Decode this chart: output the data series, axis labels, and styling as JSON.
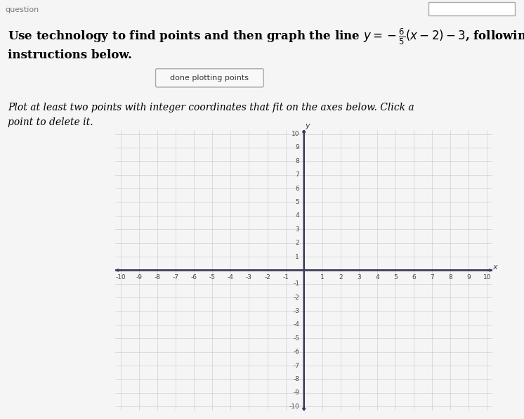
{
  "header_text": "question",
  "title_line1": "Use technology to find points and then graph the line $y = -\\frac{6}{5}(x - 2) - 3$, following the",
  "title_line2": "instructions below.",
  "button_text": "done plotting points",
  "instr_line1": "Plot at least two points with integer coordinates that fit on the axes below. Click a",
  "instr_line2": "point to delete it.",
  "xmin": -10,
  "xmax": 10,
  "ymin": -10,
  "ymax": 10,
  "xlabel": "x",
  "ylabel": "y",
  "grid_color": "#c8c8cc",
  "axis_color": "#3a3a5a",
  "page_bg": "#f5f5f5",
  "plot_bg": "#f0f0f0",
  "tick_fontsize": 6.5,
  "title_fontsize": 12,
  "instr_fontsize": 10,
  "header_fontsize": 8
}
